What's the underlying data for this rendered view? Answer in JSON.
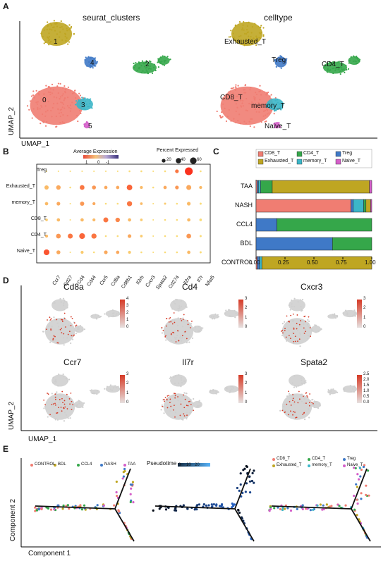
{
  "panelA": {
    "letter": "A",
    "title_left": "seurat_clusters",
    "title_right": "celltype",
    "x_axis": "UMAP_1",
    "y_axis": "UMAP_2",
    "cluster_labels": [
      "0",
      "1",
      "2",
      "3",
      "4",
      "5"
    ],
    "celltype_labels": [
      "Exhausted_T",
      "Treg",
      "CD4_T",
      "CD8_T",
      "memory_T",
      "Naive_T"
    ],
    "colors": {
      "c0": "#f07d72",
      "c1": "#bfa622",
      "c2": "#35a74a",
      "c3": "#3cb6c8",
      "c4": "#3f79c7",
      "c5": "#d45fc9"
    }
  },
  "panelB": {
    "letter": "B",
    "legend_avg_title": "Average Expression",
    "legend_avg_ticks": [
      "1",
      "0",
      "-1"
    ],
    "legend_pct_title": "Percent Expressed",
    "legend_pct_ticks": [
      "20",
      "40",
      "60"
    ],
    "chart_data": {
      "type": "dotplot",
      "rows": [
        "Treg",
        "Exhausted_T",
        "memory_T",
        "CD8_T",
        "CD4_T",
        "Naive_T"
      ],
      "genes": [
        "Ccr7",
        "Cd27",
        "Cd4",
        "Cd44",
        "Ccr5",
        "Cd8a",
        "Cd8b1",
        "Il2rb",
        "Cxcr3",
        "Spata2",
        "Cd274",
        "Il2ra",
        "Il7r",
        "Nfat5"
      ],
      "percent": [
        [
          2,
          2,
          2,
          2,
          2,
          2,
          2,
          3,
          3,
          2,
          3,
          12,
          55,
          3
        ],
        [
          16,
          18,
          3,
          20,
          14,
          10,
          10,
          28,
          8,
          3,
          10,
          12,
          22,
          8
        ],
        [
          10,
          12,
          2,
          16,
          8,
          3,
          3,
          24,
          6,
          2,
          4,
          3,
          12,
          4
        ],
        [
          6,
          10,
          2,
          10,
          8,
          22,
          18,
          10,
          6,
          2,
          3,
          3,
          10,
          6
        ],
        [
          8,
          20,
          22,
          30,
          24,
          3,
          3,
          12,
          6,
          2,
          3,
          3,
          20,
          4
        ],
        [
          30,
          14,
          2,
          8,
          3,
          12,
          10,
          8,
          3,
          2,
          3,
          3,
          10,
          4
        ]
      ],
      "expr": [
        [
          0,
          0,
          0,
          0,
          0,
          0,
          0,
          0,
          0,
          0,
          0,
          0.6,
          1,
          0
        ],
        [
          0.2,
          0.3,
          0,
          0.6,
          0.4,
          0.3,
          0.3,
          0.7,
          0.2,
          0,
          0.3,
          0.4,
          0.3,
          0.2
        ],
        [
          0.2,
          0.3,
          0,
          0.4,
          0.3,
          0,
          0,
          0.6,
          0.2,
          0,
          0.1,
          0,
          0.2,
          0
        ],
        [
          0.1,
          0.2,
          0,
          0.2,
          0.2,
          0.6,
          0.5,
          0.2,
          0.1,
          0,
          0,
          0,
          0.2,
          0
        ],
        [
          0.2,
          0.4,
          0.6,
          0.7,
          0.6,
          0,
          0,
          0.3,
          0.1,
          0,
          0,
          0,
          0.4,
          0
        ],
        [
          0.8,
          0.3,
          0,
          0.1,
          0,
          0.3,
          0.3,
          0.1,
          0,
          0,
          0,
          0,
          0.2,
          0
        ]
      ],
      "legend_expr_range": [
        -1,
        1
      ],
      "legend_pct_values": [
        20,
        40,
        60
      ]
    }
  },
  "panelC": {
    "letter": "C",
    "legend": [
      "CD8_T",
      "CD4_T",
      "Treg",
      "Exhausted_T",
      "memory_T",
      "Naive_T"
    ],
    "legend_colors": [
      "#f07d72",
      "#35a74a",
      "#3f79c7",
      "#bfa622",
      "#3cb6c8",
      "#d45fc9"
    ],
    "chart_data": {
      "type": "bar",
      "orientation": "horizontal",
      "stacked": true,
      "categories": [
        "TAA",
        "NASH",
        "CCL4",
        "BDL",
        "CONTROL"
      ],
      "series_order": [
        "CD8_T",
        "Treg",
        "memory_T",
        "CD4_T",
        "Exhausted_T",
        "Naive_T"
      ],
      "series": [
        {
          "name": "CD8_T",
          "values": [
            0.01,
            0.82,
            0,
            0,
            0.01
          ]
        },
        {
          "name": "Treg",
          "values": [
            0.01,
            0.02,
            0.18,
            0.66,
            0.02
          ]
        },
        {
          "name": "memory_T",
          "values": [
            0.02,
            0.09,
            0,
            0,
            0.02
          ]
        },
        {
          "name": "CD4_T",
          "values": [
            0.1,
            0.02,
            0.82,
            0.34,
            0.0
          ]
        },
        {
          "name": "Exhausted_T",
          "values": [
            0.84,
            0.04,
            0,
            0,
            0.95
          ]
        },
        {
          "name": "Naive_T",
          "values": [
            0.02,
            0.01,
            0,
            0,
            0
          ]
        }
      ],
      "xticks": [
        "0.00",
        "0.25",
        "0.50",
        "0.75",
        "1.00"
      ],
      "xlim": [
        0,
        1
      ]
    }
  },
  "panelD": {
    "letter": "D",
    "x_axis": "UMAP_1",
    "y_axis": "UMAP_2",
    "genes": [
      {
        "name": "Cd8a",
        "ticks": [
          "4",
          "3",
          "2",
          "1",
          "0"
        ]
      },
      {
        "name": "Cd4",
        "ticks": [
          "3",
          "2",
          "1",
          "0"
        ]
      },
      {
        "name": "Cxcr3",
        "ticks": [
          "3",
          "2",
          "1",
          "0"
        ]
      },
      {
        "name": "Ccr7",
        "ticks": [
          "3",
          "2",
          "1",
          "0"
        ]
      },
      {
        "name": "Il7r",
        "ticks": [
          "3",
          "2",
          "1",
          "0"
        ]
      },
      {
        "name": "Spata2",
        "ticks": [
          "2.5",
          "2.0",
          "1.5",
          "1.0",
          "0.5",
          "0.0"
        ]
      }
    ]
  },
  "panelE": {
    "letter": "E",
    "x_axis": "Component 1",
    "y_axis": "Component 2",
    "legend_left": [
      "CONTROL",
      "BDL",
      "CCL4",
      "NASH",
      "TAA"
    ],
    "legend_left_colors": [
      "#f07d72",
      "#bfa622",
      "#35a74a",
      "#3f79c7",
      "#d45fc9"
    ],
    "pseudotime_title": "Pseudotime",
    "pseudotime_ticks": [
      "0",
      "10",
      "20"
    ],
    "legend_right": [
      "CD8_T",
      "CD4_T",
      "Treg",
      "Exhausted_T",
      "memory_T",
      "Naive_T"
    ],
    "legend_right_colors": [
      "#f07d72",
      "#35a74a",
      "#3f79c7",
      "#bfa622",
      "#3cb6c8",
      "#d45fc9"
    ]
  }
}
